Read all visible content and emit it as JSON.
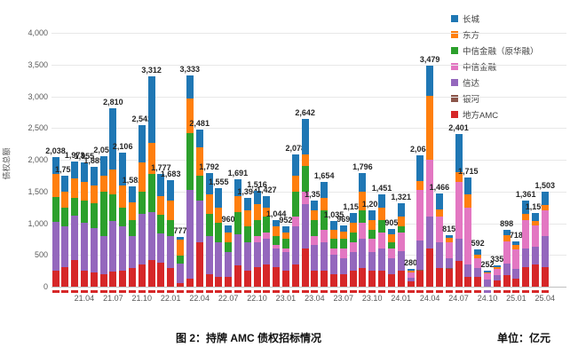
{
  "figure": {
    "caption": "图 2：持牌 AMC 债权招标情况",
    "unit_label": "单位：亿元"
  },
  "chart_data": {
    "type": "bar",
    "stacked": true,
    "ylabel": "债权总额",
    "ylim": [
      0,
      4000
    ],
    "ytick_step": 500,
    "grid": "horizontal",
    "legend_position": "upper right",
    "xtick_every": 3,
    "xtick_first_index": 3,
    "categories": [
      "21.01",
      "21.02",
      "21.03",
      "21.04",
      "21.05",
      "21.06",
      "21.07",
      "21.08",
      "21.09",
      "21.10",
      "21.11",
      "21.12",
      "22.01",
      "22.02",
      "22.03",
      "22.04",
      "22.05",
      "22.06",
      "22.07",
      "22.08",
      "22.09",
      "22.10",
      "22.11",
      "22.12",
      "23.01",
      "23.02",
      "23.03",
      "23.04",
      "23.05",
      "23.06",
      "23.07",
      "23.08",
      "23.09",
      "23.10",
      "23.11",
      "23.12",
      "24.01",
      "24.02",
      "24.03",
      "24.04",
      "24.05",
      "24.06",
      "24.07",
      "24.08",
      "24.09",
      "24.10",
      "24.11",
      "24.12",
      "25.01",
      "25.02",
      "25.03",
      "25.04"
    ],
    "totals": [
      2038,
      1752,
      1973,
      1955,
      1889,
      2056,
      2810,
      2106,
      1582,
      2542,
      3312,
      1777,
      1683,
      777,
      3333,
      2481,
      1792,
      1555,
      960,
      1691,
      1394,
      1516,
      1427,
      1044,
      952,
      2078,
      2642,
      1357,
      1654,
      1035,
      969,
      1158,
      1796,
      1200,
      1451,
      905,
      1321,
      280,
      2064,
      3479,
      1466,
      815,
      2401,
      1715,
      592,
      252,
      335,
      898,
      718,
      1361,
      1159,
      1503
    ],
    "series": [
      {
        "name": "长城",
        "color": "#1f77b4",
        "values": [
          268,
          252,
          273,
          305,
          289,
          306,
          960,
          506,
          252,
          592,
          1042,
          347,
          333,
          37,
          363,
          281,
          342,
          305,
          110,
          261,
          194,
          216,
          177,
          94,
          102,
          328,
          562,
          157,
          254,
          135,
          99,
          158,
          296,
          150,
          201,
          85,
          221,
          30,
          394,
          479,
          246,
          50,
          601,
          265,
          82,
          22,
          25,
          88,
          58,
          211,
          119,
          223
        ]
      },
      {
        "name": "东方",
        "color": "#ff7f0e",
        "values": [
          360,
          250,
          300,
          300,
          280,
          250,
          400,
          350,
          280,
          450,
          500,
          300,
          300,
          250,
          550,
          450,
          300,
          250,
          150,
          250,
          250,
          250,
          150,
          150,
          100,
          250,
          180,
          150,
          200,
          150,
          120,
          150,
          300,
          150,
          200,
          120,
          150,
          30,
          150,
          1000,
          120,
          70,
          150,
          200,
          60,
          20,
          30,
          100,
          80,
          100,
          80,
          80
        ]
      },
      {
        "name": "中信金融（原华融）",
        "color": "#2ca02c",
        "values": [
          390,
          300,
          280,
          350,
          400,
          700,
          420,
          300,
          250,
          350,
          600,
          300,
          250,
          130,
          900,
          400,
          350,
          300,
          150,
          350,
          250,
          250,
          250,
          150,
          150,
          400,
          400,
          250,
          300,
          150,
          150,
          150,
          200,
          150,
          200,
          100,
          100,
          0,
          0,
          0,
          0,
          0,
          0,
          0,
          0,
          0,
          0,
          0,
          0,
          0,
          0,
          0
        ]
      },
      {
        "name": "中信金融",
        "color": "#e377c2",
        "values": [
          0,
          0,
          0,
          0,
          0,
          0,
          0,
          0,
          0,
          0,
          0,
          0,
          0,
          0,
          0,
          0,
          0,
          0,
          0,
          0,
          0,
          100,
          100,
          50,
          50,
          150,
          200,
          150,
          200,
          100,
          150,
          150,
          250,
          200,
          250,
          150,
          300,
          80,
          800,
          900,
          400,
          250,
          900,
          900,
          150,
          100,
          100,
          350,
          300,
          450,
          330,
          400
        ]
      },
      {
        "name": "信达",
        "color": "#9467bd",
        "values": [
          770,
          650,
          700,
          750,
          700,
          600,
          800,
          700,
          500,
          800,
          750,
          450,
          500,
          300,
          1400,
          650,
          600,
          550,
          400,
          500,
          450,
          400,
          400,
          300,
          300,
          600,
          700,
          400,
          450,
          300,
          250,
          300,
          450,
          300,
          350,
          250,
          300,
          60,
          450,
          500,
          400,
          150,
          350,
          200,
          150,
          110,
          80,
          180,
          160,
          300,
          280,
          500
        ]
      },
      {
        "name": "银河",
        "color": "#8c564b",
        "values": [
          0,
          0,
          0,
          0,
          0,
          0,
          0,
          0,
          0,
          0,
          0,
          0,
          0,
          0,
          0,
          0,
          0,
          0,
          0,
          0,
          0,
          0,
          0,
          0,
          0,
          0,
          0,
          0,
          0,
          0,
          0,
          0,
          0,
          0,
          0,
          0,
          0,
          0,
          20,
          0,
          0,
          15,
          0,
          0,
          0,
          0,
          0,
          0,
          0,
          0,
          0,
          0
        ]
      },
      {
        "name": "地方AMC",
        "color": "#d62728",
        "values": [
          250,
          300,
          420,
          250,
          220,
          200,
          230,
          250,
          300,
          350,
          420,
          380,
          300,
          60,
          120,
          700,
          200,
          150,
          150,
          330,
          250,
          300,
          350,
          300,
          250,
          350,
          600,
          250,
          250,
          200,
          200,
          250,
          300,
          250,
          250,
          200,
          250,
          80,
          250,
          600,
          300,
          280,
          400,
          150,
          150,
          0,
          100,
          180,
          120,
          300,
          350,
          300
        ]
      }
    ]
  }
}
